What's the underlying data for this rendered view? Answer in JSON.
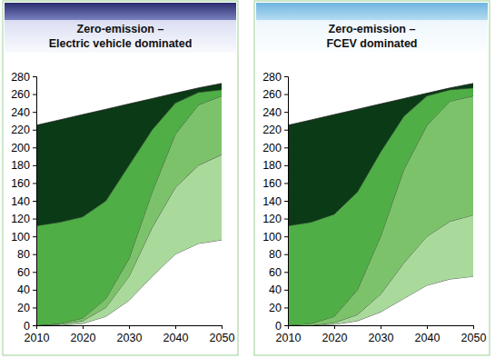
{
  "chart_data": [
    {
      "type": "area",
      "stacked": true,
      "title": [
        "Zero-emission –",
        "Electric vehicle dominated"
      ],
      "x": [
        2010,
        2015,
        2020,
        2025,
        2030,
        2035,
        2040,
        2045,
        2050
      ],
      "xlim": [
        2010,
        2050
      ],
      "xticks": [
        2010,
        2020,
        2030,
        2040,
        2050
      ],
      "ylim": [
        0,
        280
      ],
      "yticks": [
        0,
        20,
        40,
        60,
        80,
        100,
        120,
        140,
        160,
        180,
        200,
        220,
        240,
        260,
        280
      ],
      "series": [
        {
          "color": "#ffffff",
          "values": [
            0,
            0,
            2,
            10,
            28,
            55,
            80,
            92,
            96
          ]
        },
        {
          "color": "#a9d99b",
          "values": [
            0,
            1,
            3,
            10,
            27,
            55,
            75,
            88,
            96
          ]
        },
        {
          "color": "#7cc26a",
          "values": [
            0,
            1,
            3,
            10,
            20,
            40,
            60,
            68,
            66
          ]
        },
        {
          "color": "#4fae45",
          "values": [
            112,
            114,
            114,
            110,
            105,
            70,
            35,
            14,
            7
          ]
        },
        {
          "color": "#0b3a16",
          "values": [
            113,
            115,
            115,
            103,
            69,
            35,
            11,
            5,
            7
          ]
        }
      ]
    },
    {
      "type": "area",
      "stacked": true,
      "title": [
        "Zero-emission –",
        "FCEV dominated"
      ],
      "x": [
        2010,
        2015,
        2020,
        2025,
        2030,
        2035,
        2040,
        2045,
        2050
      ],
      "xlim": [
        2010,
        2050
      ],
      "xticks": [
        2010,
        2020,
        2030,
        2040,
        2050
      ],
      "ylim": [
        0,
        280
      ],
      "yticks": [
        0,
        20,
        40,
        60,
        80,
        100,
        120,
        140,
        160,
        180,
        200,
        220,
        240,
        260,
        280
      ],
      "series": [
        {
          "color": "#ffffff",
          "values": [
            0,
            0,
            1,
            5,
            15,
            30,
            45,
            52,
            55
          ]
        },
        {
          "color": "#a9d99b",
          "values": [
            0,
            0,
            2,
            7,
            20,
            40,
            55,
            65,
            69
          ]
        },
        {
          "color": "#7cc26a",
          "values": [
            0,
            2,
            7,
            28,
            65,
            105,
            125,
            135,
            134
          ]
        },
        {
          "color": "#4fae45",
          "values": [
            112,
            114,
            115,
            110,
            95,
            60,
            33,
            13,
            9
          ]
        },
        {
          "color": "#0b3a16",
          "values": [
            113,
            115,
            112,
            93,
            54,
            20,
            3,
            2,
            5
          ]
        }
      ]
    }
  ]
}
